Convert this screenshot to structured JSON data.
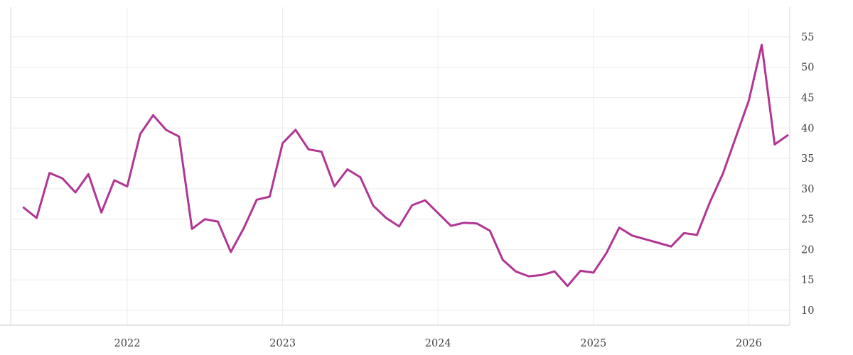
{
  "chart_data": {
    "type": "line",
    "title": "",
    "x_frequency": "monthly",
    "x_start_month": "2021-05",
    "x_end_month": "2026-04",
    "values": [
      26.9,
      25.2,
      32.6,
      31.7,
      29.4,
      32.4,
      26.1,
      31.4,
      30.4,
      39.0,
      42.1,
      39.7,
      38.6,
      23.4,
      25.0,
      24.6,
      19.6,
      23.5,
      28.2,
      28.7,
      37.5,
      39.7,
      36.5,
      36.1,
      30.4,
      33.2,
      31.9,
      27.2,
      25.2,
      23.8,
      27.3,
      28.1,
      26.0,
      23.9,
      24.4,
      24.3,
      23.1,
      18.3,
      16.4,
      15.6,
      15.8,
      16.4,
      14.0,
      16.5,
      16.2,
      19.4,
      23.6,
      22.3,
      21.7,
      21.1,
      20.5,
      22.7,
      22.4,
      27.8,
      32.5,
      38.5,
      44.5,
      53.7,
      37.3,
      38.8
    ],
    "x_tick_labels": [
      "2022",
      "2023",
      "2024",
      "2025",
      "2026"
    ],
    "y_tick_labels": [
      "10",
      "15",
      "20",
      "25",
      "30",
      "35",
      "40",
      "45",
      "50",
      "55"
    ],
    "y_ticks": [
      10,
      15,
      20,
      25,
      30,
      35,
      40,
      45,
      50,
      55
    ],
    "ylim": [
      7.55,
      59.9
    ],
    "grid": true,
    "legend_position": "none",
    "line_color": "#b13694",
    "grid_color": "#ececec",
    "border_color": "#d9d9d9",
    "bottom_axis_color": "#cccccc",
    "label_color": "#3f3f3f",
    "background_color": "#ffffff"
  }
}
